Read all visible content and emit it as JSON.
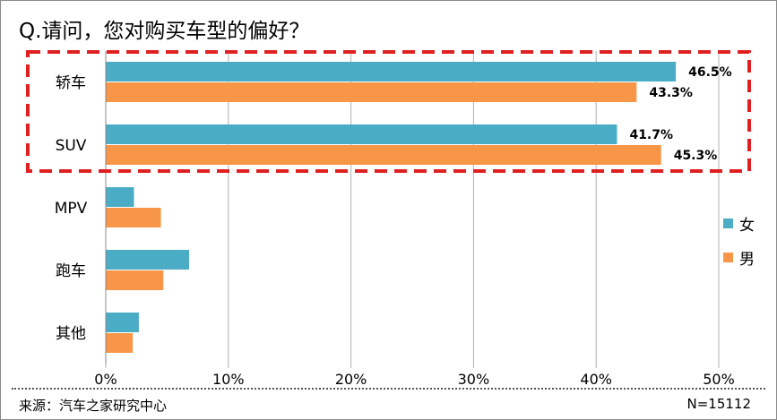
{
  "title": "Q.请问，您对购买车型的偏好？",
  "footer": {
    "source": "来源：汽车之家研究中心",
    "sample": "N=15112"
  },
  "colors": {
    "female": "#4BACC6",
    "male": "#F79646",
    "highlight": "#E02020",
    "grid": "#b0b0b0"
  },
  "chart_data": {
    "type": "bar",
    "orientation": "horizontal",
    "categories": [
      "轿车",
      "SUV",
      "MPV",
      "跑车",
      "其他"
    ],
    "series": [
      {
        "name": "女",
        "values": [
          46.5,
          41.7,
          2.3,
          6.8,
          2.7
        ]
      },
      {
        "name": "男",
        "values": [
          43.3,
          45.3,
          4.5,
          4.7,
          2.2
        ]
      }
    ],
    "data_labels": {
      "female": [
        "46.5%",
        "41.7%",
        null,
        null,
        null
      ],
      "male": [
        "43.3%",
        "45.3%",
        null,
        null,
        null
      ]
    },
    "x_ticks": [
      "0%",
      "10%",
      "20%",
      "30%",
      "40%",
      "50%"
    ],
    "xlim": [
      0,
      50
    ],
    "grid": true,
    "legend": "right",
    "highlighted_categories": [
      "轿车",
      "SUV"
    ]
  }
}
